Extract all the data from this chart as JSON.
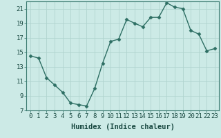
{
  "x": [
    0,
    1,
    2,
    3,
    4,
    5,
    6,
    7,
    8,
    9,
    10,
    11,
    12,
    13,
    14,
    15,
    16,
    17,
    18,
    19,
    20,
    21,
    22,
    23
  ],
  "y": [
    14.5,
    14.2,
    11.5,
    10.5,
    9.5,
    8.0,
    7.8,
    7.6,
    10.0,
    13.5,
    16.5,
    16.8,
    19.5,
    19.0,
    18.5,
    19.8,
    19.8,
    21.8,
    21.2,
    21.0,
    18.0,
    17.5,
    15.2,
    15.5
  ],
  "line_color": "#2d6e63",
  "marker_color": "#2d6e63",
  "bg_color": "#cceae6",
  "grid_color": "#b0d4cf",
  "xlabel": "Humidex (Indice chaleur)",
  "xlim": [
    -0.5,
    23.5
  ],
  "ylim": [
    7,
    22
  ],
  "yticks": [
    7,
    9,
    11,
    13,
    15,
    17,
    19,
    21
  ],
  "xticks": [
    0,
    1,
    2,
    3,
    4,
    5,
    6,
    7,
    8,
    9,
    10,
    11,
    12,
    13,
    14,
    15,
    16,
    17,
    18,
    19,
    20,
    21,
    22,
    23
  ],
  "xtick_labels": [
    "0",
    "1",
    "2",
    "3",
    "4",
    "5",
    "6",
    "7",
    "8",
    "9",
    "10",
    "11",
    "12",
    "13",
    "14",
    "15",
    "16",
    "17",
    "18",
    "19",
    "20",
    "21",
    "22",
    "23"
  ],
  "ytick_labels": [
    "7",
    "9",
    "11",
    "13",
    "15",
    "17",
    "19",
    "21"
  ],
  "font_size": 6.5,
  "xlabel_size": 7.5,
  "marker_size": 2.5,
  "line_width": 1.0
}
